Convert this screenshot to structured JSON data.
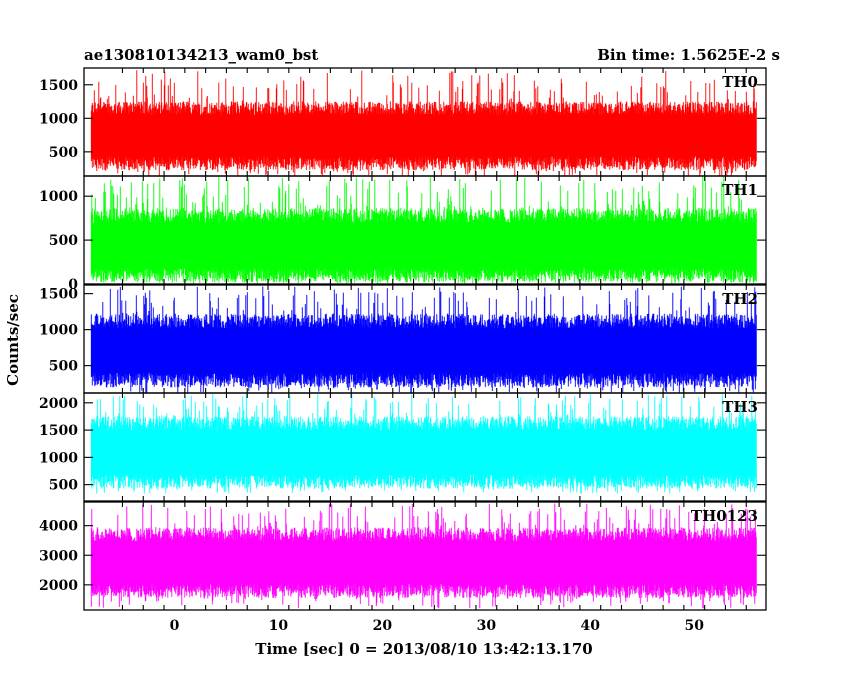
{
  "chart_data": {
    "type": "line",
    "title_left": "ae130810134213_wam0_bst",
    "title_right": "Bin time: 1.5625E-2 s",
    "xlabel": "Time [sec] 0 = 2013/08/10 13:42:13.170",
    "ylabel": "Counts/sec",
    "xlim": [
      -8.7,
      56.9
    ],
    "data_x_range": [
      -8,
      56
    ],
    "x_ticks": [
      0,
      10,
      20,
      30,
      40,
      50
    ],
    "panels": [
      {
        "name": "TH0",
        "color": "#ff0000",
        "ylim": [
          140,
          1750
        ],
        "y_ticks": [
          500,
          1000,
          1500
        ],
        "band": {
          "low": 330,
          "high": 1150,
          "spike_min": 110,
          "spike_max": 1720
        }
      },
      {
        "name": "TH1",
        "color": "#00ff00",
        "ylim": [
          0,
          1230
        ],
        "y_ticks": [
          0,
          500,
          1000
        ],
        "band": {
          "low": 100,
          "high": 780,
          "spike_min": 0,
          "spike_max": 1230
        }
      },
      {
        "name": "TH2",
        "color": "#0000ff",
        "ylim": [
          120,
          1620
        ],
        "y_ticks": [
          500,
          1000,
          1500
        ],
        "band": {
          "low": 300,
          "high": 1120,
          "spike_min": 110,
          "spike_max": 1600
        }
      },
      {
        "name": "TH3",
        "color": "#00ffff",
        "ylim": [
          200,
          2180
        ],
        "y_ticks": [
          500,
          1000,
          1500,
          2000
        ],
        "band": {
          "low": 560,
          "high": 1620,
          "spike_min": 330,
          "spike_max": 2170
        }
      },
      {
        "name": "TH0123",
        "color": "#ff00ff",
        "ylim": [
          1150,
          4800
        ],
        "y_ticks": [
          2000,
          3000,
          4000
        ],
        "band": {
          "low": 1800,
          "high": 3700,
          "spike_min": 1200,
          "spike_max": 4750
        }
      }
    ]
  }
}
